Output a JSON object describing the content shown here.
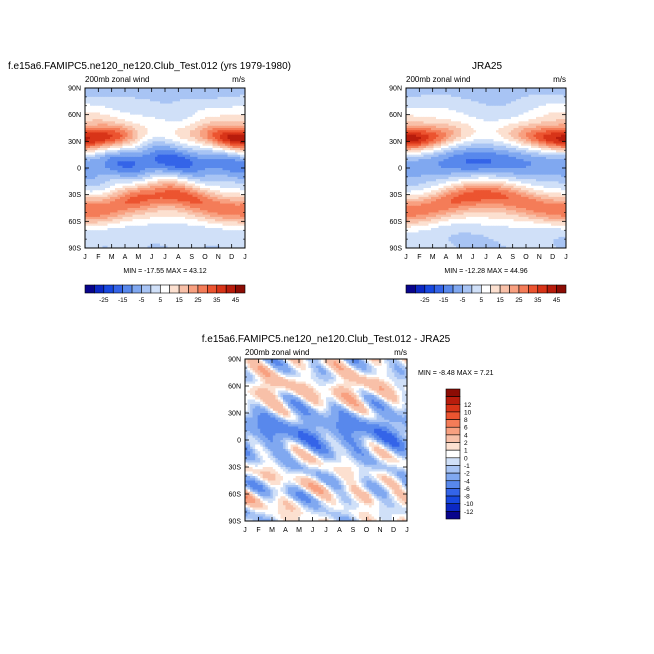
{
  "palette": {
    "main": [
      "#08048c",
      "#0c28c4",
      "#1848e0",
      "#3464e8",
      "#5888ec",
      "#80a8f0",
      "#a8c4f4",
      "#d0e0f8",
      "#ffffff",
      "#fce0d0",
      "#f8c0a8",
      "#f8a080",
      "#f47c58",
      "#ec5430",
      "#d83418",
      "#b81c0c",
      "#8c0c04"
    ],
    "diff": [
      "#08048c",
      "#0c28c4",
      "#1848e0",
      "#3464e8",
      "#5888ec",
      "#80a8f0",
      "#a8c4f4",
      "#d0e0f8",
      "#ffffff",
      "#fce0d0",
      "#f8c0a8",
      "#f8a080",
      "#f47c58",
      "#ec5430",
      "#d83418",
      "#b81c0c",
      "#8c0c04"
    ]
  },
  "chart_data": [
    {
      "type": "heatmap",
      "id": "model",
      "title": "f.e15a6.FAMIPC5.ne120_ne120.Club_Test.012 (yrs 1979-1980)",
      "subtitle_left": "200mb zonal wind",
      "subtitle_right": "m/s",
      "x_ticklabels": [
        "J",
        "F",
        "M",
        "A",
        "M",
        "J",
        "J",
        "A",
        "S",
        "O",
        "N",
        "D",
        "J"
      ],
      "y_ticklabels": [
        "90N",
        "60N",
        "30N",
        "0",
        "30S",
        "60S",
        "90S"
      ],
      "y_range": [
        -90,
        90
      ],
      "minmax_text": "MIN = -17.55 MAX =  43.12",
      "stats": {
        "min": -17.55,
        "max": 43.12
      },
      "colorbar_labels": [
        "-25",
        "-15",
        "-5",
        "5",
        "15",
        "25",
        "35",
        "45"
      ],
      "colorbar_levels": [
        -30,
        -25,
        -20,
        -15,
        -10,
        -5,
        0,
        5,
        10,
        15,
        20,
        25,
        30,
        35,
        40,
        45
      ]
    },
    {
      "type": "heatmap",
      "id": "obs",
      "title": "JRA25",
      "subtitle_left": "200mb zonal wind",
      "subtitle_right": "m/s",
      "x_ticklabels": [
        "J",
        "F",
        "M",
        "A",
        "M",
        "J",
        "J",
        "A",
        "S",
        "O",
        "N",
        "D",
        "J"
      ],
      "y_ticklabels": [
        "90N",
        "60N",
        "30N",
        "0",
        "30S",
        "60S",
        "90S"
      ],
      "y_range": [
        -90,
        90
      ],
      "minmax_text": "MIN = -12.28 MAX =  44.96",
      "stats": {
        "min": -12.28,
        "max": 44.96
      },
      "colorbar_labels": [
        "-25",
        "-15",
        "-5",
        "5",
        "15",
        "25",
        "35",
        "45"
      ],
      "colorbar_levels": [
        -30,
        -25,
        -20,
        -15,
        -10,
        -5,
        0,
        5,
        10,
        15,
        20,
        25,
        30,
        35,
        40,
        45
      ]
    },
    {
      "type": "heatmap",
      "id": "diff",
      "title": "f.e15a6.FAMIPC5.ne120_ne120.Club_Test.012 - JRA25",
      "subtitle_left": "200mb zonal wind",
      "subtitle_right": "m/s",
      "x_ticklabels": [
        "J",
        "F",
        "M",
        "A",
        "M",
        "J",
        "J",
        "A",
        "S",
        "O",
        "N",
        "D",
        "J"
      ],
      "y_ticklabels": [
        "90N",
        "60N",
        "30N",
        "0",
        "30S",
        "60S",
        "90S"
      ],
      "y_range": [
        -90,
        90
      ],
      "minmax_text": "MIN =  -8.48 MAX =   7.21",
      "stats": {
        "min": -8.48,
        "max": 7.21
      },
      "colorbar_labels": [
        "12",
        "10",
        "8",
        "6",
        "4",
        "2",
        "1",
        "0",
        "-1",
        "-2",
        "-4",
        "-6",
        "-8",
        "-10",
        "-12"
      ],
      "colorbar_levels": [
        -12,
        -10,
        -8,
        -6,
        -4,
        -2,
        -1,
        0,
        1,
        2,
        4,
        6,
        8,
        10,
        12
      ]
    }
  ]
}
